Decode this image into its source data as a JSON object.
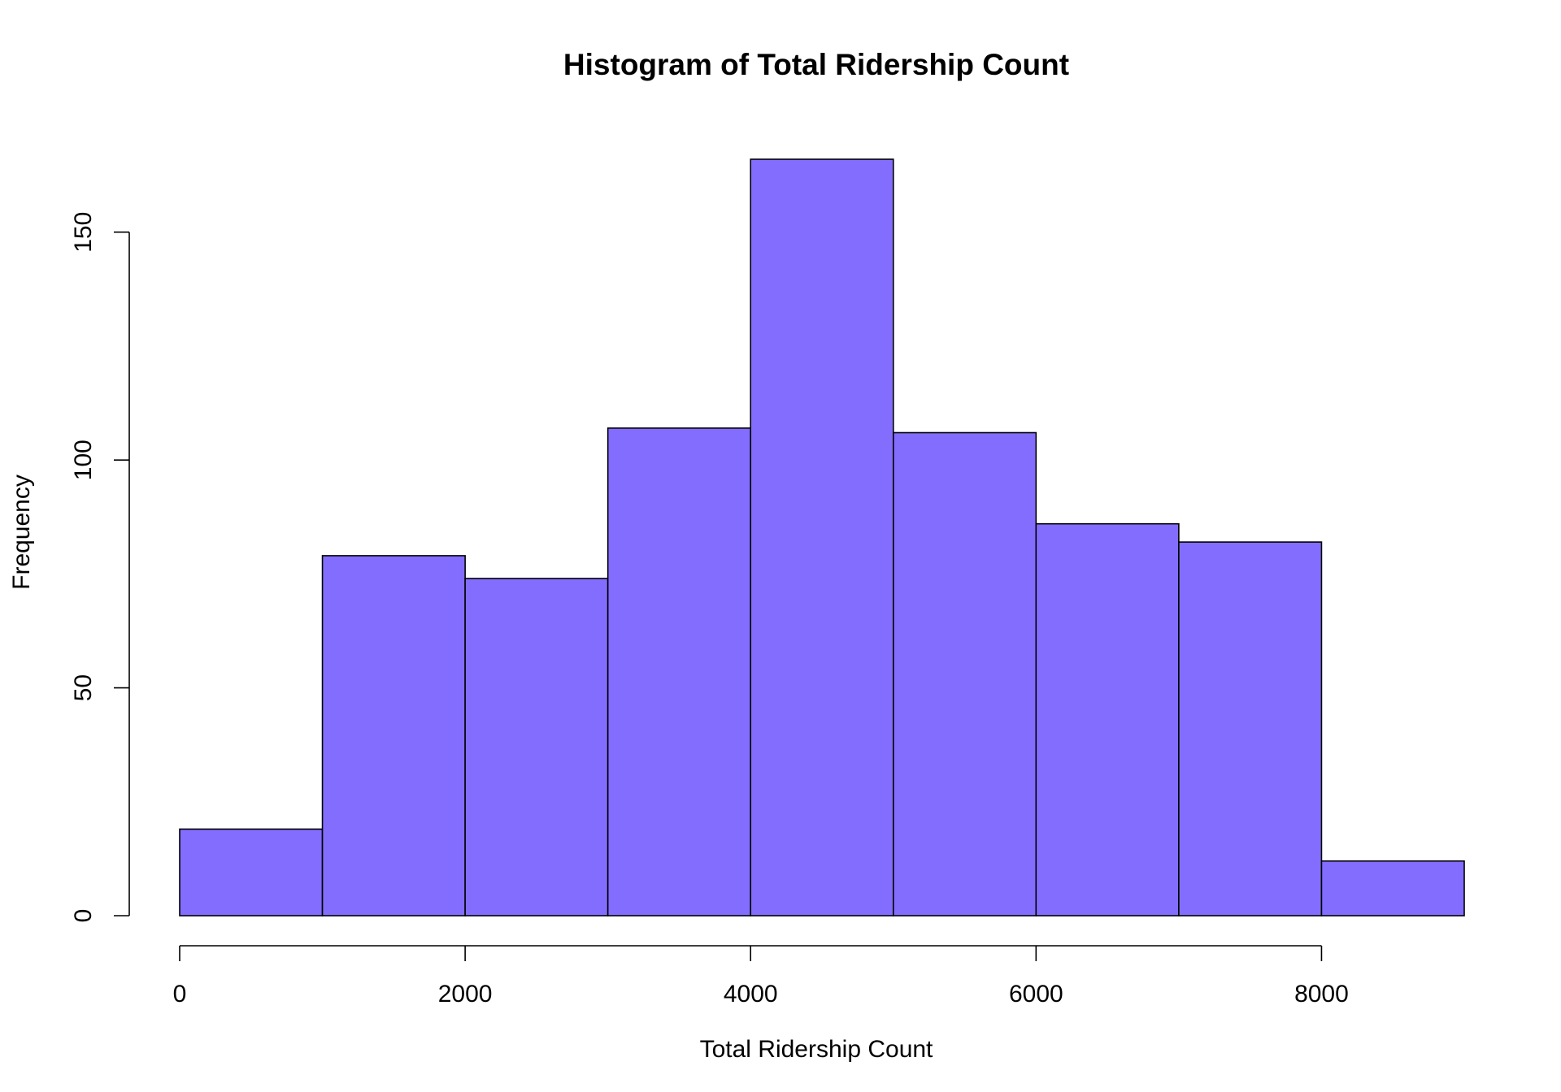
{
  "chart_data": {
    "type": "bar",
    "title": "Histogram of Total Ridership Count",
    "xlabel": "Total Ridership Count",
    "ylabel": "Frequency",
    "bin_edges": [
      0,
      1000,
      2000,
      3000,
      4000,
      5000,
      6000,
      7000,
      8000,
      9000
    ],
    "values": [
      19,
      79,
      74,
      107,
      166,
      106,
      86,
      82,
      12
    ],
    "xlim": [
      0,
      9000
    ],
    "ylim": [
      0,
      166
    ],
    "x_ticks": [
      0,
      2000,
      4000,
      6000,
      8000
    ],
    "y_ticks": [
      0,
      50,
      100,
      150
    ],
    "bar_color": "#836dff",
    "grid": false,
    "legend": "none"
  }
}
